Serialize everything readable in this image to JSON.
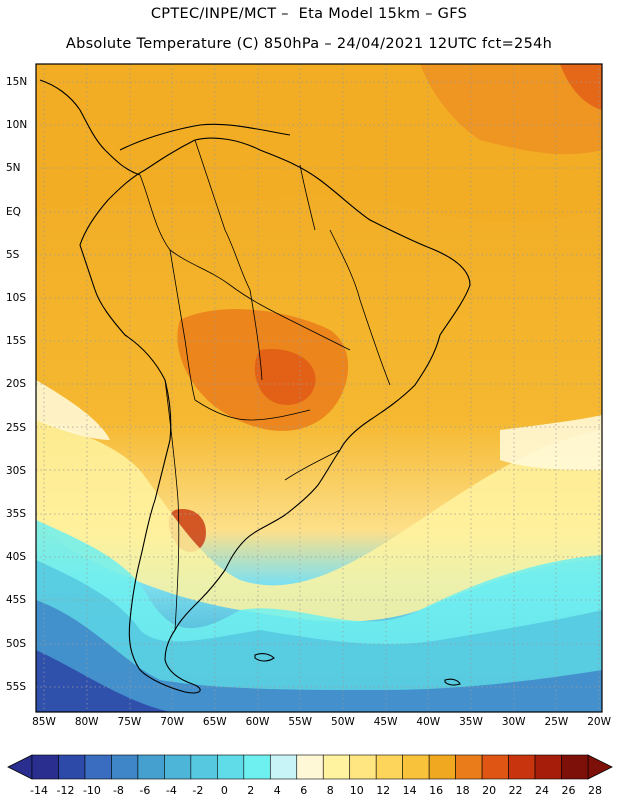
{
  "header": {
    "line1": "CPTEC/INPE/MCT –  Eta Model 15km – GFS",
    "line2": "Absolute Temperature (C) 850hPa – 24/04/2021 12UTC fct=254h"
  },
  "map": {
    "lat_labels": [
      "15N",
      "10N",
      "5N",
      "EQ",
      "5S",
      "10S",
      "15S",
      "20S",
      "25S",
      "30S",
      "35S",
      "40S",
      "45S",
      "50S",
      "55S"
    ],
    "lon_labels": [
      "85W",
      "80W",
      "75W",
      "70W",
      "65W",
      "60W",
      "55W",
      "50W",
      "45W",
      "40W",
      "35W",
      "30W",
      "25W",
      "20W"
    ]
  },
  "colorbar": {
    "labels": [
      "-14",
      "-12",
      "-10",
      "-8",
      "-6",
      "-4",
      "-2",
      "0",
      "2",
      "4",
      "6",
      "8",
      "10",
      "12",
      "14",
      "16",
      "18",
      "20",
      "22",
      "24",
      "26",
      "28"
    ],
    "colors": [
      "#2a2f8f",
      "#2e4aa8",
      "#3a6cc0",
      "#3f86c8",
      "#45a0cf",
      "#4db6d8",
      "#56c9e0",
      "#60dbe8",
      "#6ff0f0",
      "#c8f4f7",
      "#fff8d6",
      "#fff3a0",
      "#ffe680",
      "#fdd55a",
      "#f8c23a",
      "#f0a820",
      "#ea7d1a",
      "#df5514",
      "#c8340e",
      "#a61d0a",
      "#7d1008"
    ]
  }
}
